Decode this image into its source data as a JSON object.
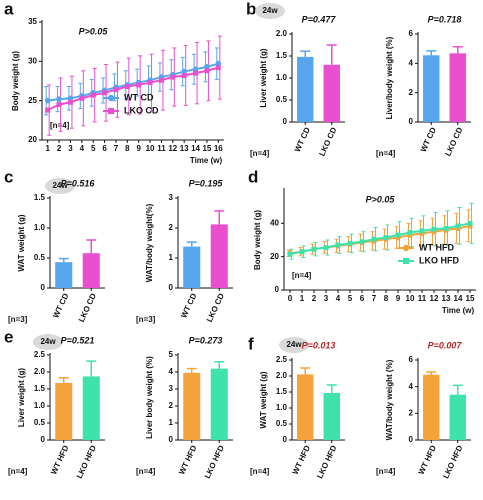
{
  "chart_data": [
    {
      "type": "line",
      "panel": "a",
      "ylabel": "Body weight (g)",
      "xlabel": "Time (w)",
      "annotation": "P>0.05",
      "note": "[n=4]",
      "x": [
        1,
        2,
        3,
        4,
        5,
        6,
        7,
        8,
        9,
        10,
        11,
        12,
        13,
        14,
        15,
        16
      ],
      "xlim": [
        0.5,
        16.5
      ],
      "xticks": [
        1,
        2,
        3,
        4,
        5,
        6,
        7,
        8,
        9,
        10,
        11,
        12,
        13,
        14,
        15,
        16
      ],
      "ylim": [
        20,
        35
      ],
      "yticks": [
        20,
        25,
        30,
        35
      ],
      "legend": "lower center",
      "series": [
        {
          "name": "WT  CD",
          "color": "#56a6ee",
          "marker": "circle",
          "values": [
            25,
            25.2,
            25.3,
            25.6,
            26,
            26.3,
            26.7,
            27,
            27.3,
            27.6,
            28,
            28.3,
            28.7,
            29,
            29.3,
            29.7
          ],
          "errors": [
            1.8,
            1.6,
            1.5,
            1.6,
            1.7,
            1.6,
            1.7,
            1.8,
            1.7,
            1.8,
            1.8,
            1.9,
            1.8,
            1.9,
            1.9,
            2
          ]
        },
        {
          "name": "LKO CD",
          "color": "#e94fcf",
          "marker": "square",
          "values": [
            23.8,
            24.5,
            24.8,
            25.3,
            25.7,
            26,
            26.4,
            26.8,
            27,
            27.3,
            27.6,
            28,
            28.2,
            28.5,
            28.8,
            29.2
          ],
          "errors": [
            3.2,
            3.4,
            3.3,
            3.5,
            3.4,
            3.6,
            3.5,
            3.6,
            3.7,
            3.6,
            3.8,
            3.7,
            3.8,
            3.9,
            3.8,
            4
          ]
        }
      ]
    },
    {
      "type": "bar",
      "panel": "b",
      "badge": "24w",
      "ylabel": "Liver weight (g)",
      "annotation": "P=0.477",
      "note": "[n=4]",
      "categories": [
        "WT CD",
        "LKO CD"
      ],
      "values": [
        1.48,
        1.3
      ],
      "errors": [
        0.13,
        0.45
      ],
      "colors": [
        "#56a6ee",
        "#e94fcf"
      ],
      "ylim": [
        0,
        2
      ],
      "yticks": [
        0,
        0.5,
        {
          "value": 1,
          "label": "1.0"
        },
        1.5,
        {
          "value": 2,
          "label": "2.0"
        }
      ]
    },
    {
      "type": "bar",
      "ylabel": "Liver/body weight (%)",
      "annotation": "P=0.718",
      "note": "[n=4]",
      "categories": [
        "WT CD",
        "LKO CD"
      ],
      "values": [
        4.55,
        4.68
      ],
      "errors": [
        0.3,
        0.45
      ],
      "colors": [
        "#56a6ee",
        "#e94fcf"
      ],
      "ylim": [
        0,
        6
      ],
      "yticks": [
        0,
        2,
        4,
        6
      ]
    },
    {
      "type": "bar",
      "panel": "c",
      "badge": "24w",
      "ylabel": "WAT  weight (g)",
      "annotation": "P=0.516",
      "note": "[n=3]",
      "categories": [
        "WT CD",
        "LKO CD"
      ],
      "values": [
        0.43,
        0.58
      ],
      "errors": [
        0.06,
        0.22
      ],
      "colors": [
        "#56a6ee",
        "#e94fcf"
      ],
      "ylim": [
        0,
        1.5
      ],
      "yticks": [
        0,
        0.5,
        {
          "value": 1,
          "label": "1.0"
        },
        1.5
      ]
    },
    {
      "type": "bar",
      "ylabel": "WAT/body weight(%)",
      "annotation": "P=0.195",
      "note": "[n=3]",
      "categories": [
        "WT CD",
        "LKO CD"
      ],
      "values": [
        1.38,
        2.12
      ],
      "errors": [
        0.15,
        0.45
      ],
      "colors": [
        "#56a6ee",
        "#e94fcf"
      ],
      "ylim": [
        0,
        3
      ],
      "yticks": [
        0,
        1,
        2,
        3
      ]
    },
    {
      "type": "line",
      "panel": "d",
      "ylabel": "Body weight (g)",
      "xlabel": "Time (w)",
      "annotation": "P>0.05",
      "note": "[n=4]",
      "x": [
        0,
        1,
        2,
        3,
        4,
        5,
        6,
        7,
        8,
        9,
        10,
        11,
        12,
        13,
        14,
        15
      ],
      "xlim": [
        -0.5,
        15.5
      ],
      "xticks": [
        0,
        1,
        2,
        3,
        4,
        5,
        6,
        7,
        8,
        9,
        10,
        11,
        12,
        13,
        14,
        15
      ],
      "ylim": [
        0,
        60
      ],
      "yticks": [
        0,
        20,
        40
      ],
      "legend": "lower right",
      "series": [
        {
          "name": "WT  HFD",
          "color": "#f5a23c",
          "marker": "circle",
          "values": [
            22,
            23,
            24.5,
            25.5,
            26.5,
            27.5,
            28.5,
            29.5,
            30.5,
            31.5,
            33,
            34,
            35,
            36,
            37,
            38.5
          ],
          "errors": [
            2,
            2.5,
            3,
            3.5,
            4,
            4.5,
            5,
            5.5,
            6,
            6.5,
            7,
            7.5,
            8,
            8.5,
            9,
            9.5
          ]
        },
        {
          "name": "LKO HFD",
          "color": "#3fe2aa",
          "marker": "square",
          "values": [
            21.5,
            23,
            24.5,
            25.5,
            27,
            28,
            29,
            30.5,
            31.5,
            33,
            34.5,
            35.5,
            36.5,
            37,
            38.5,
            40
          ],
          "errors": [
            3,
            3.5,
            4,
            4.5,
            5,
            5.5,
            6,
            7,
            7.5,
            8,
            8.5,
            9,
            10,
            10.5,
            11,
            12
          ]
        }
      ]
    },
    {
      "type": "bar",
      "panel": "e",
      "badge": "24w",
      "ylabel": "Liver weight (g)",
      "annotation": "P=0.521",
      "note": "[n=4]",
      "categories": [
        "WT HFD",
        "LKO HFD"
      ],
      "values": [
        1.68,
        1.87
      ],
      "errors": [
        0.15,
        0.45
      ],
      "colors": [
        "#f5a23c",
        "#3fe2aa"
      ],
      "ylim": [
        0,
        2.5
      ],
      "yticks": [
        0,
        0.5,
        {
          "value": 1,
          "label": "1.0"
        },
        1.5,
        {
          "value": 2,
          "label": "2.0"
        },
        2.5
      ]
    },
    {
      "type": "bar",
      "ylabel": "Liver body weight (%)",
      "annotation": "P=0.273",
      "note": "[n=4]",
      "categories": [
        "WT HFD",
        "LKO HFD"
      ],
      "values": [
        3.95,
        4.2
      ],
      "errors": [
        0.25,
        0.4
      ],
      "colors": [
        "#f5a23c",
        "#3fe2aa"
      ],
      "ylim": [
        0,
        5
      ],
      "yticks": [
        0,
        1,
        2,
        3,
        4,
        5
      ]
    },
    {
      "type": "bar",
      "panel": "f",
      "badge": "24w",
      "ylabel": "WAT  weight (g)",
      "annotation": "P=0.013",
      "annotation_color": "#b0282a",
      "note": "[n=4]",
      "categories": [
        "WT HFD",
        "LKO HFD"
      ],
      "values": [
        2.05,
        1.47
      ],
      "errors": [
        0.2,
        0.25
      ],
      "colors": [
        "#f5a23c",
        "#3fe2aa"
      ],
      "ylim": [
        0,
        2.5
      ],
      "yticks": [
        0,
        0.5,
        {
          "value": 1,
          "label": "1.0"
        },
        1.5,
        {
          "value": 2,
          "label": "2.0"
        },
        2.5
      ]
    },
    {
      "type": "bar",
      "ylabel": "WAT/body weight (%)",
      "annotation": "P=0.007",
      "annotation_color": "#b0282a",
      "note": "[n=4]",
      "categories": [
        "WT HFD",
        "LKO HFD"
      ],
      "values": [
        4.9,
        3.4
      ],
      "errors": [
        0.2,
        0.7
      ],
      "colors": [
        "#f5a23c",
        "#3fe2aa"
      ],
      "ylim": [
        0,
        6
      ],
      "yticks": [
        0,
        2,
        4,
        6
      ]
    }
  ]
}
